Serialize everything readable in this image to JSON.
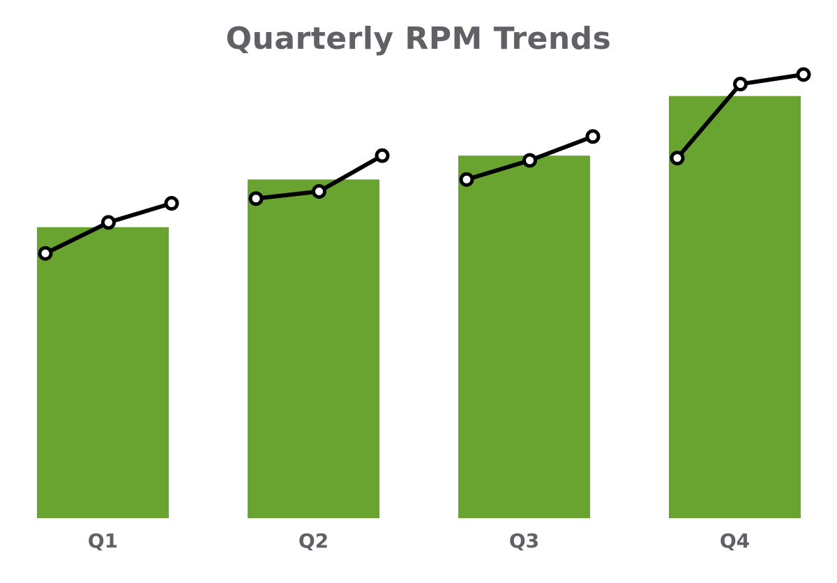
{
  "chart_data": {
    "type": "bar",
    "title": "Quarterly RPM Trends",
    "categories": [
      "Q1",
      "Q2",
      "Q3",
      "Q4"
    ],
    "values": [
      61,
      71,
      76,
      88.5
    ],
    "bar_color": "#68a42f",
    "trend_lines": [
      {
        "quarter": "Q1",
        "values": [
          55.5,
          62,
          66
        ]
      },
      {
        "quarter": "Q2",
        "values": [
          67,
          68.5,
          76
        ]
      },
      {
        "quarter": "Q3",
        "values": [
          71,
          75,
          80
        ]
      },
      {
        "quarter": "Q4",
        "values": [
          75.5,
          91,
          93
        ]
      }
    ],
    "trend_line_color": "#000000",
    "marker_fill": "#ffffff",
    "ylim": [
      0,
      100
    ],
    "grid": false,
    "legend": "none"
  }
}
